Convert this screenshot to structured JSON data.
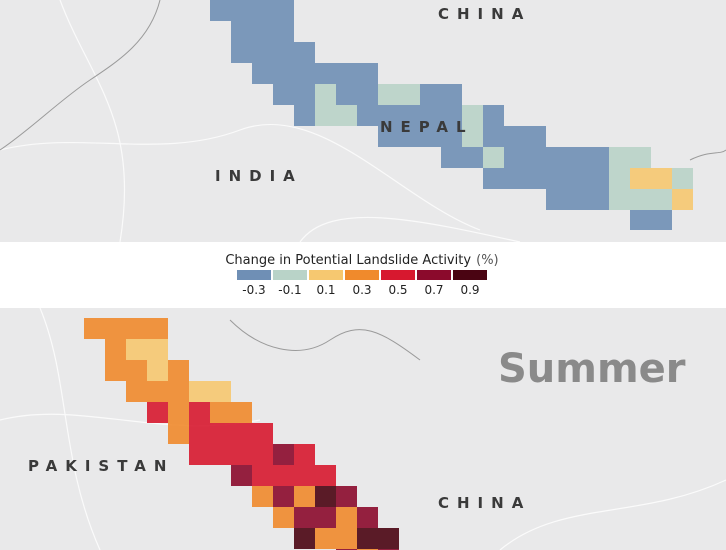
{
  "top_map": {
    "labels": [
      "CHINA",
      "NEPAL",
      "INDIA"
    ]
  },
  "legend": {
    "title": "Change in Potential Landslide Activity",
    "unit": "(%)",
    "colors": [
      "#6f8fb5",
      "#b9d3c8",
      "#f6c870",
      "#f08a2c",
      "#d7182f",
      "#8b0a2c",
      "#4a0412"
    ],
    "ticks": [
      -0.3,
      -0.1,
      0.1,
      0.3,
      0.5,
      0.7,
      0.9
    ]
  },
  "bottom_map": {
    "title": "Summer",
    "labels": [
      "PAKISTAN",
      "CHINA"
    ]
  }
}
